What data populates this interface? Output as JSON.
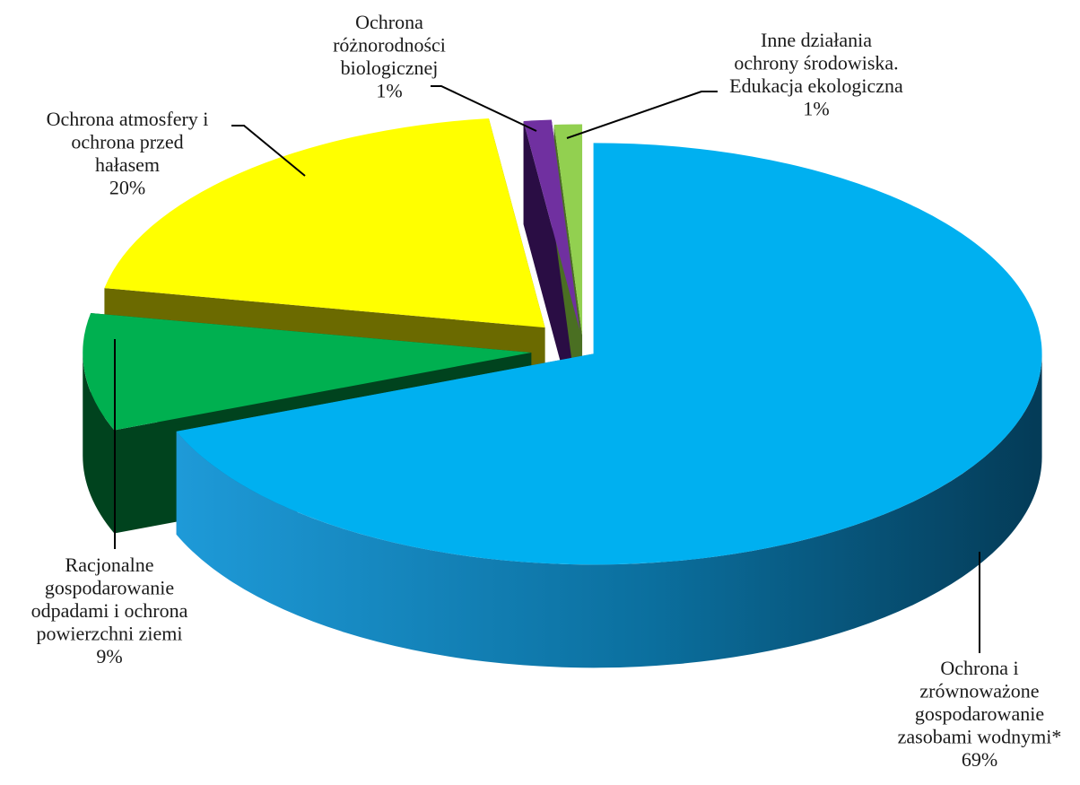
{
  "chart_data": {
    "type": "pie",
    "title": "",
    "legend": "none",
    "style": "3d-exploded",
    "slices": [
      {
        "label": "Ochrona i zrównoważone gospodarowanie zasobami wodnymi*",
        "label_lines": [
          "Ochrona i",
          "zrównoważone",
          "gospodarowanie",
          "zasobami wodnymi*"
        ],
        "value": 69,
        "value_label": "69%",
        "color": "#00B0F0",
        "side_color": "#0A6FA0"
      },
      {
        "label": "Racjonalne gospodarowanie odpadami i ochrona powierzchni ziemi",
        "label_lines": [
          "Racjonalne",
          "gospodarowanie",
          "odpadami i ochrona",
          "powierzchni ziemi"
        ],
        "value": 9,
        "value_label": "9%",
        "color": "#00B050",
        "side_color": "#00431E"
      },
      {
        "label": "Ochrona atmosfery i ochrona przed hałasem",
        "label_lines": [
          "Ochrona atmosfery i",
          "ochrona przed",
          "hałasem"
        ],
        "value": 20,
        "value_label": "20%",
        "color": "#FFFF00",
        "side_color": "#6B6A00"
      },
      {
        "label": "Ochrona różnorodności biologicznej",
        "label_lines": [
          "Ochrona",
          "różnorodności",
          "biologicznej"
        ],
        "value": 1,
        "value_label": "1%",
        "color": "#7030A0",
        "side_color": "#2A0D44"
      },
      {
        "label": "Inne działania ochrony środowiska. Edukacja ekologiczna",
        "label_lines": [
          "Inne działania",
          "ochrony środowiska.",
          "Edukacja ekologiczna"
        ],
        "value": 1,
        "value_label": "1%",
        "color": "#92D050",
        "side_color": "#4A6F22"
      }
    ]
  }
}
